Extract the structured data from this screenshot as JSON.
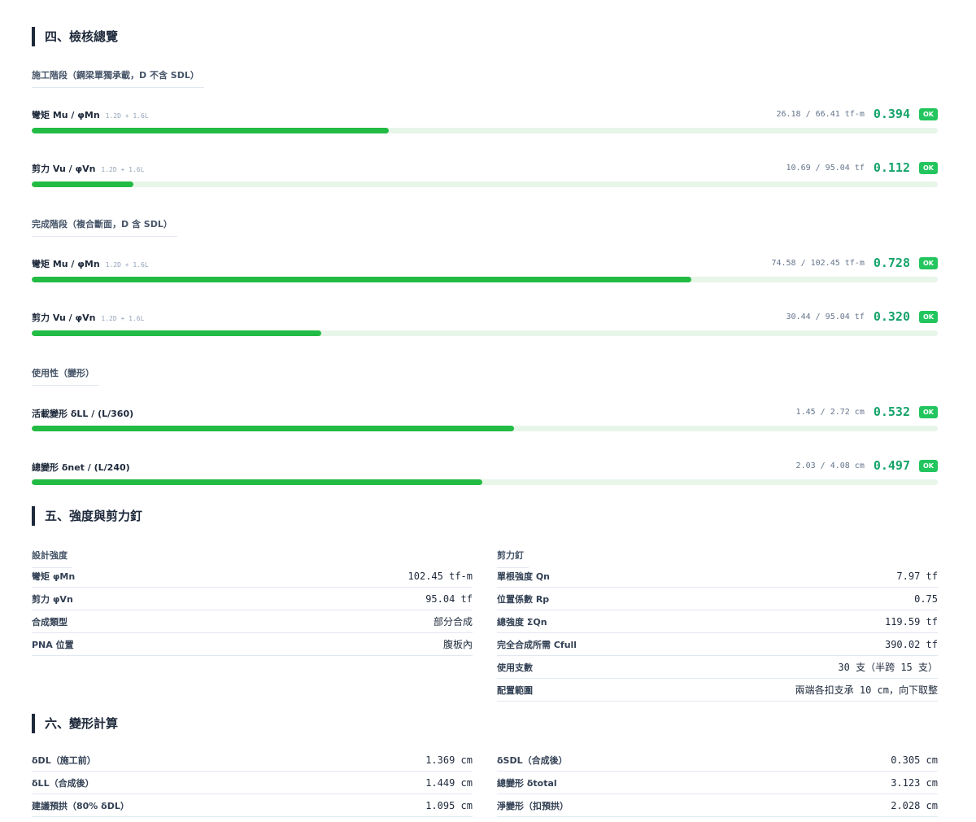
{
  "sections": [
    {
      "title": "四、檢核總覽",
      "groups": [
        {
          "title": "施工階段（鋼梁單獨承載，D 不含 SDL）",
          "checks": [
            {
              "label": "彎矩 Mu / φMn",
              "combo": "1.2D + 1.6L",
              "detail": "26.18 / 66.41 tf-m",
              "ratio": 0.394,
              "ratio_label": "0.394",
              "status": "OK"
            },
            {
              "label": "剪力 Vu / φVn",
              "combo": "1.2D + 1.6L",
              "detail": "10.69 / 95.04 tf",
              "ratio": 0.112,
              "ratio_label": "0.112",
              "status": "OK"
            }
          ]
        },
        {
          "title": "完成階段（複合斷面，D 含 SDL）",
          "checks": [
            {
              "label": "彎矩 Mu / φMn",
              "combo": "1.2D + 1.6L",
              "detail": "74.58 / 102.45 tf-m",
              "ratio": 0.728,
              "ratio_label": "0.728",
              "status": "OK"
            },
            {
              "label": "剪力 Vu / φVn",
              "combo": "1.2D + 1.6L",
              "detail": "30.44 / 95.04 tf",
              "ratio": 0.32,
              "ratio_label": "0.320",
              "status": "OK"
            }
          ]
        },
        {
          "title": "使用性（變形）",
          "checks": [
            {
              "label": "活載變形 δLL / (L/360)",
              "detail": "1.45 / 2.72 cm",
              "ratio": 0.532,
              "ratio_label": "0.532",
              "status": "OK"
            },
            {
              "label": "總變形 δnet / (L/240)",
              "detail": "2.03 / 4.08 cm",
              "ratio": 0.497,
              "ratio_label": "0.497",
              "status": "OK"
            }
          ]
        }
      ]
    },
    {
      "title": "五、強度與剪力釘",
      "columns": [
        {
          "title": "設計強度",
          "rows": [
            [
              "彎矩 φMn",
              "102.45 tf-m"
            ],
            [
              "剪力 φVn",
              "95.04 tf"
            ],
            [
              "合成類型",
              "部分合成"
            ],
            [
              "PNA 位置",
              "腹板內"
            ]
          ]
        },
        {
          "title": "剪力釘",
          "rows": [
            [
              "單根強度 Qn",
              "7.97 tf"
            ],
            [
              "位置係數 Rp",
              "0.75"
            ],
            [
              "總強度 ΣQn",
              "119.59 tf"
            ],
            [
              "完全合成所需 Cfull",
              "390.02 tf"
            ],
            [
              "使用支數",
              "30 支（半跨 15 支）"
            ],
            [
              "配置範圍",
              "兩端各扣支承 10 cm，向下取整"
            ]
          ]
        }
      ]
    },
    {
      "title": "六、變形計算",
      "columns": [
        {
          "rows": [
            [
              "δDL（施工前）",
              "1.369 cm"
            ],
            [
              "δLL（合成後）",
              "1.449 cm"
            ],
            [
              "建議預拱（80% δDL）",
              "1.095 cm"
            ]
          ]
        },
        {
          "rows": [
            [
              "δSDL（合成後）",
              "0.305 cm"
            ],
            [
              "總變形 δtotal",
              "3.123 cm"
            ],
            [
              "淨變形（扣預拱）",
              "2.028 cm"
            ]
          ]
        }
      ]
    }
  ]
}
